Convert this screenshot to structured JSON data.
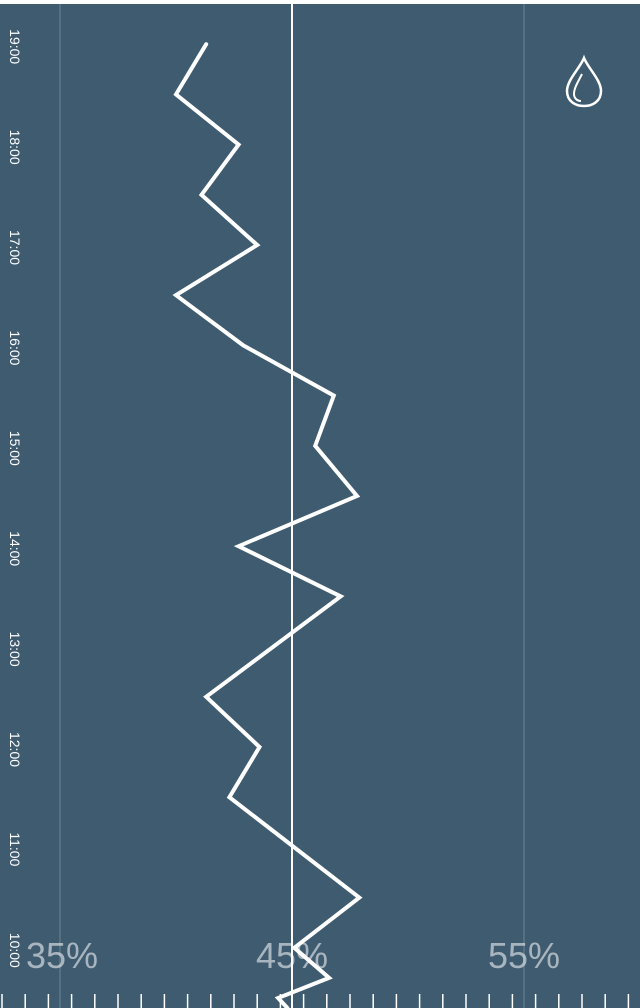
{
  "chart_data": {
    "type": "line",
    "orientation": "vertical-time",
    "time_axis_labels": [
      "10:00",
      "11:00",
      "12:00",
      "13:00",
      "14:00",
      "15:00",
      "16:00",
      "17:00",
      "18:00",
      "19:00"
    ],
    "value_axis_labels": [
      "35%",
      "45%",
      "55%"
    ],
    "value_axis_ticks": [
      35,
      45,
      55
    ],
    "value_range": [
      32.5,
      60
    ],
    "time_range": [
      9.45,
      19.45
    ],
    "reference_value": 45,
    "points": [
      {
        "t": 9.45,
        "v": 44.8
      },
      {
        "t": 9.55,
        "v": 44.4
      },
      {
        "t": 9.75,
        "v": 46.6
      },
      {
        "t": 10.05,
        "v": 45.1
      },
      {
        "t": 10.55,
        "v": 47.9
      },
      {
        "t": 11.55,
        "v": 42.3
      },
      {
        "t": 12.05,
        "v": 43.6
      },
      {
        "t": 12.55,
        "v": 41.3
      },
      {
        "t": 13.55,
        "v": 47.1
      },
      {
        "t": 14.05,
        "v": 42.7
      },
      {
        "t": 14.55,
        "v": 47.8
      },
      {
        "t": 15.05,
        "v": 46.0
      },
      {
        "t": 15.55,
        "v": 46.8
      },
      {
        "t": 16.05,
        "v": 42.9
      },
      {
        "t": 16.55,
        "v": 40.0
      },
      {
        "t": 17.05,
        "v": 43.5
      },
      {
        "t": 17.55,
        "v": 41.1
      },
      {
        "t": 18.05,
        "v": 42.7
      },
      {
        "t": 18.55,
        "v": 40.0
      },
      {
        "t": 19.05,
        "v": 41.3
      }
    ]
  },
  "icon": {
    "name": "water-drop-icon"
  },
  "colors": {
    "background": "#3e5b70",
    "line": "#ffffff",
    "grid": "#6d8596",
    "reference_line": "#ffffff",
    "percent_labels": "#a9b8c3"
  }
}
